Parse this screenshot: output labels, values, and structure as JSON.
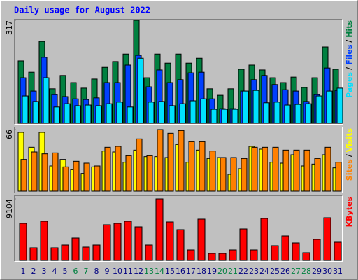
{
  "chart_data": [
    {
      "type": "bar",
      "title": "Daily usage for August 2022",
      "legend_separator": "/",
      "ylim": [
        0,
        317
      ],
      "yticks": [
        317
      ],
      "series": [
        {
          "name": "Hits",
          "color": "#008040",
          "values": [
            192,
            157,
            252,
            106,
            147,
            125,
            108,
            136,
            172,
            190,
            213,
            317,
            140,
            213,
            185,
            213,
            185,
            200,
            106,
            86,
            106,
            166,
            179,
            164,
            140,
            125,
            142,
            110,
            140,
            235,
            166
          ]
        },
        {
          "name": "Files",
          "color": "#0040ff",
          "values": [
            140,
            99,
            203,
            88,
            82,
            75,
            73,
            78,
            125,
            125,
            179,
            209,
            112,
            164,
            125,
            134,
            155,
            157,
            75,
            45,
            45,
            99,
            134,
            147,
            119,
            103,
            99,
            67,
            88,
            170,
            101
          ]
        },
        {
          "name": "Pages",
          "color": "#00e0ff",
          "values": [
            84,
            67,
            140,
            50,
            60,
            54,
            56,
            54,
            60,
            65,
            50,
            200,
            65,
            67,
            54,
            60,
            69,
            75,
            43,
            43,
            43,
            99,
            101,
            63,
            65,
            56,
            58,
            60,
            84,
            99,
            108
          ]
        }
      ]
    },
    {
      "type": "bar",
      "ylim": [
        0,
        66
      ],
      "yticks": [
        66
      ],
      "series": [
        {
          "name": "Visits",
          "color": "#ffff00",
          "values": [
            63,
            47,
            63,
            27,
            34,
            23,
            19,
            26,
            43,
            42,
            31,
            44,
            37,
            37,
            36,
            50,
            31,
            44,
            35,
            36,
            18,
            24,
            48,
            45,
            31,
            30,
            39,
            27,
            29,
            39,
            25
          ]
        },
        {
          "name": "Sites",
          "color": "#ff8000",
          "values": [
            34,
            42,
            40,
            41,
            26,
            32,
            30,
            27,
            47,
            48,
            38,
            56,
            38,
            66,
            62,
            65,
            53,
            53,
            43,
            36,
            36,
            35,
            47,
            47,
            47,
            44,
            44,
            44,
            35,
            47,
            31
          ]
        }
      ]
    },
    {
      "type": "bar",
      "ylim": [
        0,
        9104
      ],
      "yticks": [
        9104
      ],
      "categories": [
        "1",
        "2",
        "3",
        "4",
        "5",
        "6",
        "7",
        "8",
        "9",
        "10",
        "11",
        "12",
        "13",
        "14",
        "15",
        "16",
        "17",
        "18",
        "19",
        "20",
        "21",
        "22",
        "23",
        "24",
        "25",
        "26",
        "27",
        "28",
        "29",
        "30",
        "31"
      ],
      "category_colors": [
        "#000080",
        "#000080",
        "#000080",
        "#000080",
        "#000080",
        "#008040",
        "#008040",
        "#000080",
        "#000080",
        "#000080",
        "#000080",
        "#000080",
        "#008040",
        "#008040",
        "#000080",
        "#000080",
        "#000080",
        "#000080",
        "#000080",
        "#008040",
        "#008040",
        "#000080",
        "#000080",
        "#000080",
        "#000080",
        "#000080",
        "#008040",
        "#008040",
        "#000080",
        "#000080",
        "#000080"
      ],
      "series": [
        {
          "name": "KBytes",
          "color": "#ff0000",
          "values": [
            5483,
            1862,
            5793,
            1862,
            2276,
            3310,
            1966,
            2276,
            5276,
            5483,
            5793,
            4966,
            2276,
            9104,
            5690,
            4552,
            1552,
            6104,
            1034,
            1034,
            1552,
            4655,
            1552,
            6207,
            2172,
            3621,
            2586,
            1138,
            3103,
            6310,
            2690
          ]
        }
      ]
    }
  ]
}
